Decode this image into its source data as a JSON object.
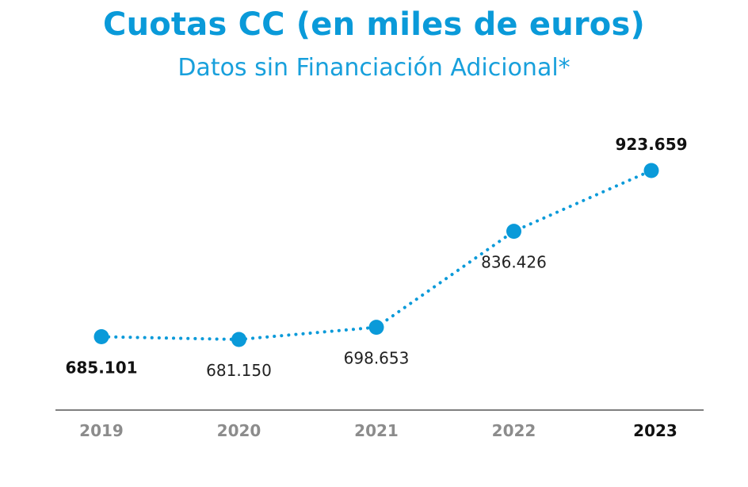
{
  "chart_data": {
    "type": "line",
    "title": "Cuotas CC (en miles de euros)",
    "subtitle": "Datos sin Financiación Adicional*",
    "categories": [
      "2019",
      "2020",
      "2021",
      "2022",
      "2023"
    ],
    "series": [
      {
        "values": [
          685101,
          681150,
          698653,
          836426,
          923659
        ],
        "labels": [
          "685.101",
          "681.150",
          "698.653",
          "836.426",
          "923.659"
        ]
      }
    ],
    "highlight_index": [
      0,
      4
    ],
    "line_style": "dotted",
    "color": "#0a9ad9",
    "grid": false,
    "legend": "none"
  }
}
